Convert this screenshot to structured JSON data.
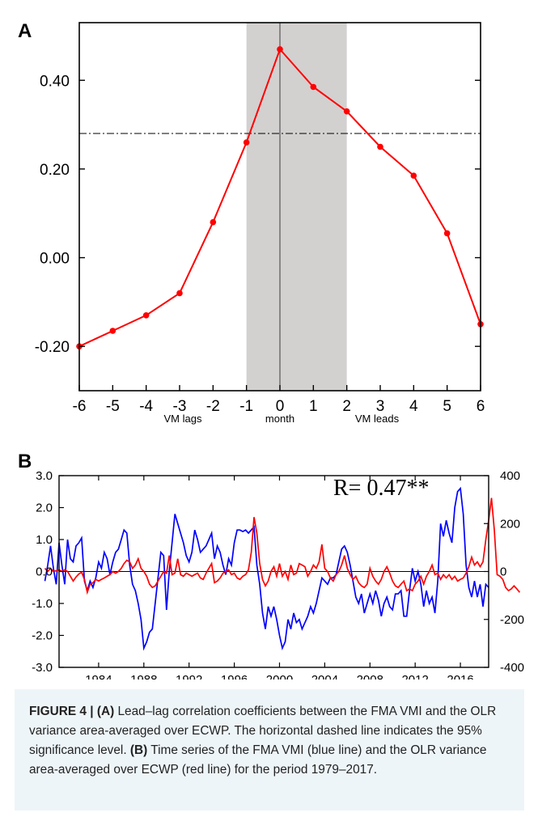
{
  "panel_a": {
    "letter": "A",
    "x_sublabels": [
      "VM lags",
      "month",
      "VM leads"
    ]
  },
  "panel_b": {
    "letter": "B",
    "annotation": "R= 0.47**"
  },
  "caption": {
    "figure_label": "FIGURE 4 |",
    "a_tag": "(A)",
    "a_text": "Lead–lag correlation coefficients between the FMA VMI and the OLR variance area-averaged over ECWP. The horizontal dashed line indicates the 95% significance level.",
    "b_tag": "(B)",
    "b_text": "Time series of the FMA VMI (blue line) and the OLR variance area-averaged over ECWP (red line) for the period 1979–2017."
  },
  "chart_data": [
    {
      "type": "line",
      "x": [
        -6,
        -5,
        -4,
        -3,
        -2,
        -1,
        0,
        1,
        2,
        3,
        4,
        5,
        6
      ],
      "series": [
        {
          "color": "#ff0000",
          "values": [
            -0.2,
            -0.165,
            -0.13,
            -0.08,
            0.08,
            0.26,
            0.47,
            0.385,
            0.33,
            0.25,
            0.185,
            0.055,
            -0.15
          ]
        }
      ],
      "significance_level": 0.28,
      "shaded_x_range": [
        -1,
        2
      ],
      "zero_line_x": 0,
      "xlim": [
        -6,
        6
      ],
      "ylim": [
        -0.3,
        0.53
      ],
      "xticks": [
        -6,
        -5,
        -4,
        -3,
        -2,
        -1,
        0,
        1,
        2,
        3,
        4,
        5,
        6
      ],
      "yticks": [
        -0.2,
        0.0,
        0.2,
        0.4
      ],
      "ytick_labels": [
        "-0.20",
        "0.00",
        "0.20",
        "0.40"
      ],
      "grid": false
    },
    {
      "type": "line",
      "x_start": 1979.25,
      "x_step": 0.25,
      "xlim": [
        1980.5,
        2018.5
      ],
      "xticks": [
        1984,
        1988,
        1992,
        1996,
        2000,
        2004,
        2008,
        2012,
        2016
      ],
      "ylim_left": [
        -3.0,
        3.0
      ],
      "yticks_left": [
        "3.0",
        "2.0",
        "1.0",
        "0.0",
        "-1.0",
        "-2.0",
        "-3.0"
      ],
      "ylim_right": [
        -400,
        400
      ],
      "yticks_right": [
        "400",
        "200",
        "0",
        "-200",
        "-400"
      ],
      "grid": false,
      "series": [
        {
          "color": "#0000ff",
          "axis": "left",
          "values": [
            -0.3,
            0.2,
            0.8,
            0.1,
            -0.4,
            0.9,
            0.2,
            -0.4,
            1.0,
            0.4,
            0.3,
            0.8,
            0.9,
            1.05,
            -0.3,
            -0.6,
            -0.3,
            -0.5,
            -0.2,
            0.3,
            0.1,
            0.6,
            0.4,
            -0.1,
            0.3,
            0.6,
            0.7,
            1.0,
            1.3,
            1.2,
            0.2,
            -0.4,
            -0.6,
            -1.0,
            -1.5,
            -2.4,
            -2.2,
            -1.9,
            -1.8,
            -1.0,
            -0.2,
            0.6,
            0.5,
            -1.2,
            0.0,
            0.9,
            1.8,
            1.5,
            1.2,
            0.9,
            0.5,
            0.3,
            0.6,
            1.3,
            1.0,
            0.6,
            0.7,
            0.8,
            1.0,
            1.2,
            0.4,
            0.8,
            0.6,
            0.2,
            -0.1,
            0.4,
            0.2,
            0.9,
            1.3,
            1.3,
            1.25,
            1.3,
            1.2,
            1.3,
            1.4,
            0.2,
            -0.4,
            -1.3,
            -1.8,
            -1.1,
            -1.4,
            -1.1,
            -1.5,
            -2.0,
            -2.4,
            -2.2,
            -1.5,
            -1.8,
            -1.3,
            -1.6,
            -1.5,
            -1.8,
            -1.6,
            -1.4,
            -1.1,
            -1.3,
            -1.0,
            -0.6,
            -0.2,
            -0.3,
            -0.4,
            -0.2,
            -0.2,
            -0.1,
            0.3,
            0.7,
            0.8,
            0.6,
            0.2,
            -0.3,
            -0.8,
            -1.0,
            -0.7,
            -1.3,
            -1.0,
            -0.7,
            -1.0,
            -0.6,
            -0.9,
            -1.4,
            -1.0,
            -0.8,
            -1.1,
            -1.2,
            -0.7,
            -0.7,
            -0.6,
            -1.4,
            -1.4,
            -0.6,
            0.1,
            -0.3,
            0.0,
            -0.4,
            -1.1,
            -0.6,
            -1.0,
            -0.8,
            -1.3,
            -0.3,
            1.5,
            1.1,
            1.6,
            1.2,
            0.9,
            2.0,
            2.5,
            2.6,
            1.8,
            0.2,
            -0.5,
            -0.8,
            -0.3,
            -0.8,
            -0.4,
            -1.1,
            -0.4,
            -0.5
          ]
        },
        {
          "color": "#ff0000",
          "axis": "right",
          "values": [
            13,
            0,
            13,
            0,
            3,
            7,
            0,
            7,
            0,
            -20,
            -40,
            -23,
            -10,
            -3,
            -33,
            -87,
            -53,
            -47,
            -33,
            -40,
            -33,
            -27,
            -20,
            -13,
            0,
            -7,
            0,
            13,
            33,
            47,
            40,
            13,
            27,
            53,
            13,
            0,
            -20,
            -53,
            -67,
            -60,
            -40,
            -20,
            0,
            -7,
            67,
            -13,
            -7,
            53,
            -13,
            -20,
            -7,
            -13,
            -20,
            -13,
            -7,
            -27,
            -33,
            -7,
            13,
            33,
            -47,
            -40,
            -27,
            -7,
            0,
            7,
            -13,
            -7,
            -27,
            -33,
            -20,
            -13,
            7,
            80,
            227,
            160,
            33,
            -33,
            -60,
            -40,
            0,
            20,
            -20,
            33,
            -20,
            0,
            -33,
            27,
            -13,
            -7,
            33,
            27,
            20,
            -20,
            0,
            27,
            13,
            40,
            113,
            13,
            0,
            -27,
            -40,
            -13,
            0,
            27,
            67,
            13,
            -13,
            -33,
            -20,
            -47,
            -60,
            -67,
            -53,
            13,
            -20,
            -40,
            -53,
            -33,
            0,
            20,
            -7,
            -40,
            -60,
            -67,
            -53,
            -40,
            -80,
            -73,
            -80,
            -53,
            -40,
            -20,
            -53,
            -20,
            0,
            27,
            -13,
            -7,
            -33,
            -13,
            -27,
            -13,
            -33,
            -20,
            -40,
            -33,
            -27,
            -7,
            20,
            60,
            27,
            40,
            20,
            40,
            133,
            213,
            307,
            173,
            -13,
            -20,
            -33,
            -67,
            -80,
            -73,
            -60,
            -73,
            -87
          ]
        }
      ]
    }
  ]
}
